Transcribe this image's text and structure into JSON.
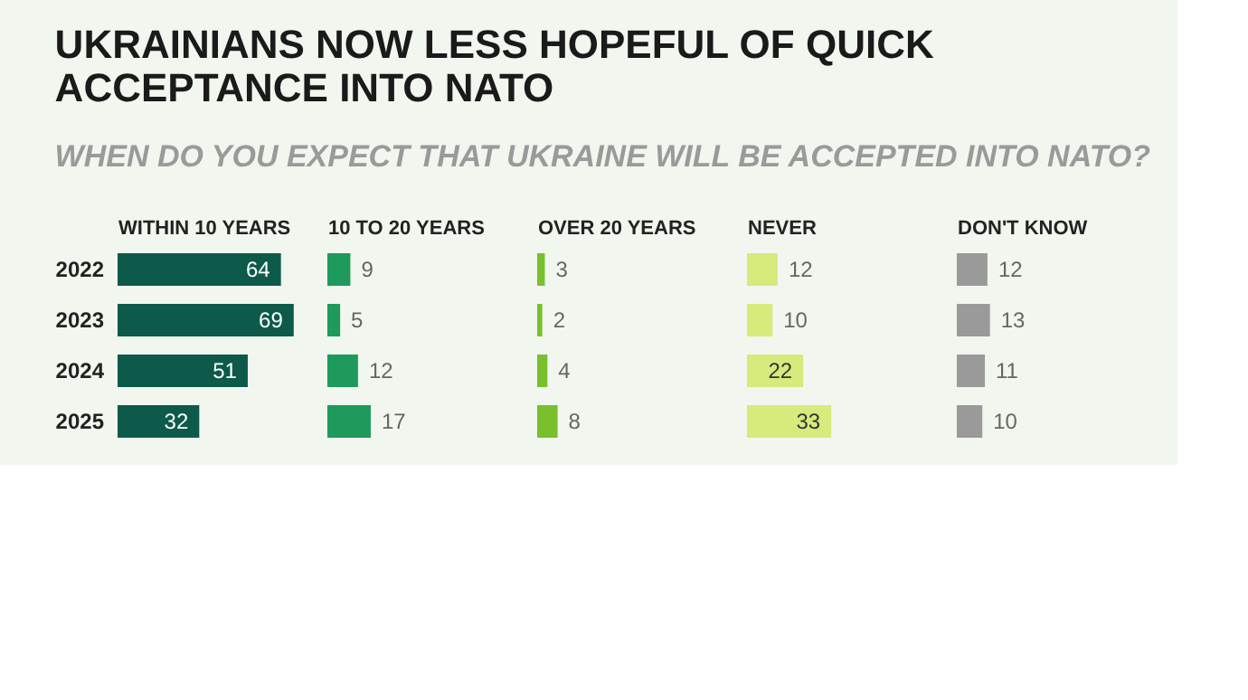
{
  "chart_data": [
    {
      "type": "bar",
      "orientation": "horizontal",
      "title": [
        "UKRAINIANS NOW LESS HOPEFUL OF QUICK",
        "ACCEPTANCE INTO NATO"
      ],
      "subtitle": "WHEN DO YOU EXPECT THAT UKRAINE WILL BE ACCEPTED INTO NATO?",
      "xlabel": "WITHIN 10 YEARS",
      "categories": [
        "2022",
        "2023",
        "2024",
        "2025"
      ],
      "values": [
        64,
        69,
        51,
        32
      ],
      "color": "#0d5a4a",
      "data_labels": true,
      "tick_labels": "y"
    },
    {
      "type": "bar",
      "orientation": "horizontal",
      "xlabel": "10 TO 20 YEARS",
      "categories": [
        "2022",
        "2023",
        "2024",
        "2025"
      ],
      "values": [
        9,
        5,
        12,
        17
      ],
      "color": "#1e9a5c",
      "data_labels": true,
      "tick_labels": false
    },
    {
      "type": "bar",
      "orientation": "horizontal",
      "xlabel": "OVER 20 YEARS",
      "categories": [
        "2022",
        "2023",
        "2024",
        "2025"
      ],
      "values": [
        3,
        2,
        4,
        8
      ],
      "color": "#79c02c",
      "data_labels": true,
      "tick_labels": false
    },
    {
      "type": "bar",
      "orientation": "horizontal",
      "xlabel": "NEVER",
      "categories": [
        "2022",
        "2023",
        "2024",
        "2025"
      ],
      "values": [
        12,
        10,
        22,
        33
      ],
      "color": "#d6eb7c",
      "data_labels": true,
      "tick_labels": false
    },
    {
      "type": "bar",
      "orientation": "horizontal",
      "xlabel": "DON'T KNOW",
      "categories": [
        "2022",
        "2023",
        "2024",
        "2025"
      ],
      "values": [
        12,
        13,
        11,
        10
      ],
      "color": "#9a9a9a",
      "data_labels": true,
      "tick_labels": false
    }
  ]
}
